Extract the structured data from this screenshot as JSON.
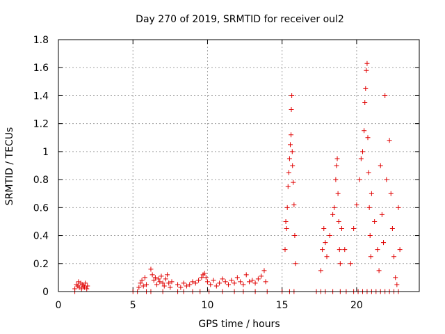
{
  "chart_data": {
    "type": "scatter",
    "title": "Day 270 of 2019, SRMTID for receiver oul2",
    "xlabel": "GPS time / hours",
    "ylabel": "SRMTID / TECUs",
    "xlim": [
      0,
      24.2
    ],
    "ylim": [
      0,
      1.8
    ],
    "xticks": [
      0,
      5,
      10,
      15,
      20
    ],
    "yticks": [
      0,
      0.2,
      0.4,
      0.6,
      0.8,
      1.0,
      1.2,
      1.4,
      1.6,
      1.8
    ],
    "xtick_labels": [
      "0",
      "5",
      "10",
      "15",
      "20"
    ],
    "ytick_labels": [
      "0",
      "0.2",
      "0.4",
      "0.6",
      "0.8",
      "1",
      "1.2",
      "1.4",
      "1.6",
      "1.8"
    ],
    "grid": true,
    "marker": "+",
    "color": "#e00000",
    "series": [
      {
        "name": "SRMTID",
        "points": [
          [
            1.1,
            0.02
          ],
          [
            1.2,
            0.05
          ],
          [
            1.3,
            0.04
          ],
          [
            1.35,
            0.07
          ],
          [
            1.4,
            0.03
          ],
          [
            1.5,
            0.06
          ],
          [
            1.55,
            0.02
          ],
          [
            1.6,
            0.05
          ],
          [
            1.7,
            0.04
          ],
          [
            1.75,
            0.03
          ],
          [
            1.8,
            0.06
          ],
          [
            1.9,
            0.02
          ],
          [
            1.95,
            0.04
          ],
          [
            5.4,
            0.03
          ],
          [
            5.5,
            0.06
          ],
          [
            5.6,
            0.08
          ],
          [
            5.7,
            0.04
          ],
          [
            5.8,
            0.1
          ],
          [
            5.9,
            0.05
          ],
          [
            6.2,
            0.16
          ],
          [
            6.3,
            0.12
          ],
          [
            6.4,
            0.08
          ],
          [
            6.5,
            0.1
          ],
          [
            6.6,
            0.05
          ],
          [
            6.7,
            0.09
          ],
          [
            6.8,
            0.07
          ],
          [
            6.9,
            0.11
          ],
          [
            7.0,
            0.06
          ],
          [
            7.1,
            0.04
          ],
          [
            7.2,
            0.09
          ],
          [
            7.3,
            0.12
          ],
          [
            7.4,
            0.06
          ],
          [
            7.5,
            0.03
          ],
          [
            7.6,
            0.07
          ],
          [
            8.0,
            0.05
          ],
          [
            8.2,
            0.03
          ],
          [
            8.4,
            0.06
          ],
          [
            8.6,
            0.04
          ],
          [
            8.8,
            0.05
          ],
          [
            9.0,
            0.07
          ],
          [
            9.2,
            0.06
          ],
          [
            9.4,
            0.08
          ],
          [
            9.6,
            0.1
          ],
          [
            9.7,
            0.12
          ],
          [
            9.8,
            0.13
          ],
          [
            9.9,
            0.1
          ],
          [
            10.0,
            0.07
          ],
          [
            10.2,
            0.05
          ],
          [
            10.4,
            0.08
          ],
          [
            10.6,
            0.04
          ],
          [
            10.8,
            0.06
          ],
          [
            11.0,
            0.09
          ],
          [
            11.2,
            0.07
          ],
          [
            11.4,
            0.05
          ],
          [
            11.6,
            0.08
          ],
          [
            11.8,
            0.06
          ],
          [
            12.0,
            0.1
          ],
          [
            12.2,
            0.07
          ],
          [
            12.4,
            0.05
          ],
          [
            12.6,
            0.12
          ],
          [
            12.8,
            0.07
          ],
          [
            13.0,
            0.08
          ],
          [
            13.2,
            0.06
          ],
          [
            13.4,
            0.09
          ],
          [
            13.6,
            0.11
          ],
          [
            13.8,
            0.15
          ],
          [
            13.9,
            0.07
          ],
          [
            15.2,
            0.3
          ],
          [
            15.25,
            0.5
          ],
          [
            15.3,
            0.45
          ],
          [
            15.35,
            0.6
          ],
          [
            15.4,
            0.75
          ],
          [
            15.45,
            0.85
          ],
          [
            15.5,
            0.95
          ],
          [
            15.55,
            1.05
          ],
          [
            15.6,
            1.12
          ],
          [
            15.62,
            1.3
          ],
          [
            15.65,
            1.4
          ],
          [
            15.68,
            1.0
          ],
          [
            15.7,
            0.9
          ],
          [
            15.75,
            0.78
          ],
          [
            15.8,
            0.62
          ],
          [
            15.85,
            0.4
          ],
          [
            15.9,
            0.2
          ],
          [
            17.6,
            0.15
          ],
          [
            17.7,
            0.3
          ],
          [
            17.8,
            0.45
          ],
          [
            17.9,
            0.35
          ],
          [
            18.0,
            0.25
          ],
          [
            18.2,
            0.4
          ],
          [
            18.4,
            0.55
          ],
          [
            18.5,
            0.6
          ],
          [
            18.6,
            0.8
          ],
          [
            18.65,
            0.9
          ],
          [
            18.7,
            0.95
          ],
          [
            18.75,
            0.7
          ],
          [
            18.8,
            0.5
          ],
          [
            18.85,
            0.3
          ],
          [
            18.9,
            0.2
          ],
          [
            19.0,
            0.45
          ],
          [
            19.2,
            0.3
          ],
          [
            19.6,
            0.2
          ],
          [
            19.8,
            0.45
          ],
          [
            20.0,
            0.62
          ],
          [
            20.2,
            0.8
          ],
          [
            20.3,
            0.95
          ],
          [
            20.4,
            1.0
          ],
          [
            20.5,
            1.15
          ],
          [
            20.55,
            1.35
          ],
          [
            20.6,
            1.45
          ],
          [
            20.65,
            1.58
          ],
          [
            20.7,
            1.63
          ],
          [
            20.75,
            1.1
          ],
          [
            20.8,
            0.85
          ],
          [
            20.85,
            0.6
          ],
          [
            20.9,
            0.4
          ],
          [
            20.95,
            0.25
          ],
          [
            21.0,
            0.7
          ],
          [
            21.2,
            0.5
          ],
          [
            21.4,
            0.3
          ],
          [
            21.5,
            0.15
          ],
          [
            21.6,
            0.9
          ],
          [
            21.7,
            0.55
          ],
          [
            21.8,
            0.35
          ],
          [
            21.9,
            1.4
          ],
          [
            22.0,
            0.8
          ],
          [
            22.2,
            1.08
          ],
          [
            22.3,
            0.7
          ],
          [
            22.4,
            0.45
          ],
          [
            22.5,
            0.25
          ],
          [
            22.6,
            0.1
          ],
          [
            22.7,
            0.05
          ],
          [
            22.8,
            0.6
          ],
          [
            22.9,
            0.3
          ]
        ],
        "zero_points": [
          1.1,
          5.0,
          5.3,
          5.9,
          6.2,
          7.0,
          8.0,
          8.4,
          9.0,
          9.5,
          10.1,
          11.0,
          11.8,
          12.4,
          13.2,
          14.0,
          15.0,
          15.5,
          15.8,
          17.3,
          17.6,
          17.9,
          18.4,
          18.9,
          19.3,
          19.8,
          20.1,
          20.4,
          20.7,
          21.0,
          21.3,
          21.6,
          21.9,
          22.2,
          22.5,
          22.8
        ]
      }
    ]
  }
}
